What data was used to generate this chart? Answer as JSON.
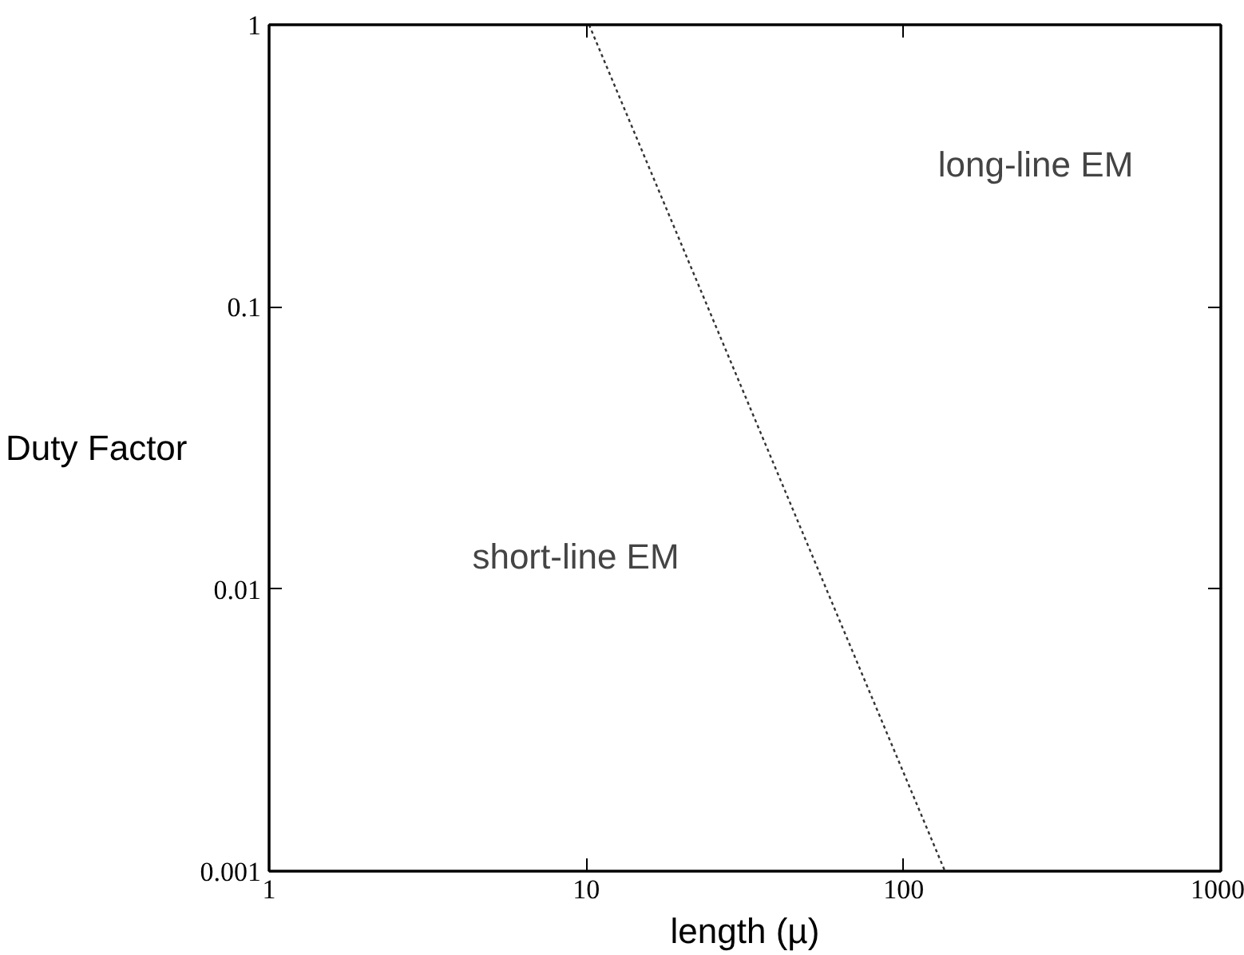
{
  "chart_data": {
    "type": "line",
    "xlabel": "length (µ)",
    "ylabel": "Duty Factor",
    "log": "xy",
    "grid": false,
    "line_style": "dotted",
    "marker": "none",
    "xlim": [
      1,
      1000
    ],
    "xticks": [
      1,
      10,
      100,
      1000
    ],
    "ylim": [
      0.001,
      1
    ],
    "yticks": [
      0.001,
      0.01,
      0.1,
      1
    ],
    "series": [
      {
        "color": "#333333",
        "x": [
          10.2,
          135
        ],
        "values": [
          1,
          0.001
        ]
      }
    ],
    "annotations": [
      "long-line EM",
      "short-line EM"
    ]
  }
}
